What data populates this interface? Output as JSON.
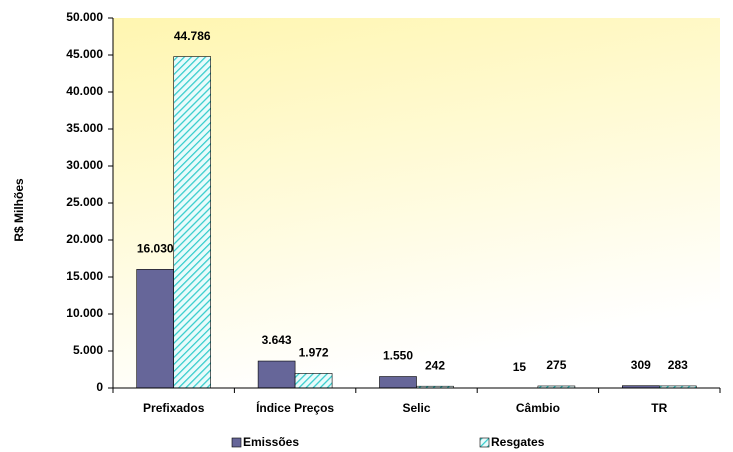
{
  "chart_data": {
    "type": "bar",
    "y_label": "R$ Milhões",
    "categories": [
      "Prefixados",
      "Índice Preços",
      "Selic",
      "Câmbio",
      "TR"
    ],
    "series": [
      {
        "name": "Emissões",
        "color": "#666699",
        "values": [
          16030,
          3643,
          1550,
          15,
          309
        ],
        "value_labels": [
          "16.030",
          "3.643",
          "1.550",
          "15",
          "309"
        ]
      },
      {
        "name": "Resgates",
        "color": "#33cccc",
        "hatch": true,
        "values": [
          44786,
          1972,
          242,
          275,
          283
        ],
        "value_labels": [
          "44.786",
          "1.972",
          "242",
          "275",
          "283"
        ]
      }
    ],
    "ylim": [
      0,
      50000
    ],
    "yticks": [
      0,
      {
        "value": 5000,
        "label": "5.000"
      },
      {
        "value": 10000,
        "label": "10.000"
      },
      {
        "value": 15000,
        "label": "15.000"
      },
      {
        "value": 20000,
        "label": "20.000"
      },
      {
        "value": 25000,
        "label": "25.000"
      },
      {
        "value": 30000,
        "label": "30.000"
      },
      {
        "value": 35000,
        "label": "35.000"
      },
      {
        "value": 40000,
        "label": "40.000"
      },
      {
        "value": 45000,
        "label": "45.000"
      },
      {
        "value": 50000,
        "label": "50.000"
      }
    ],
    "grid": false,
    "legend": "bottom"
  }
}
